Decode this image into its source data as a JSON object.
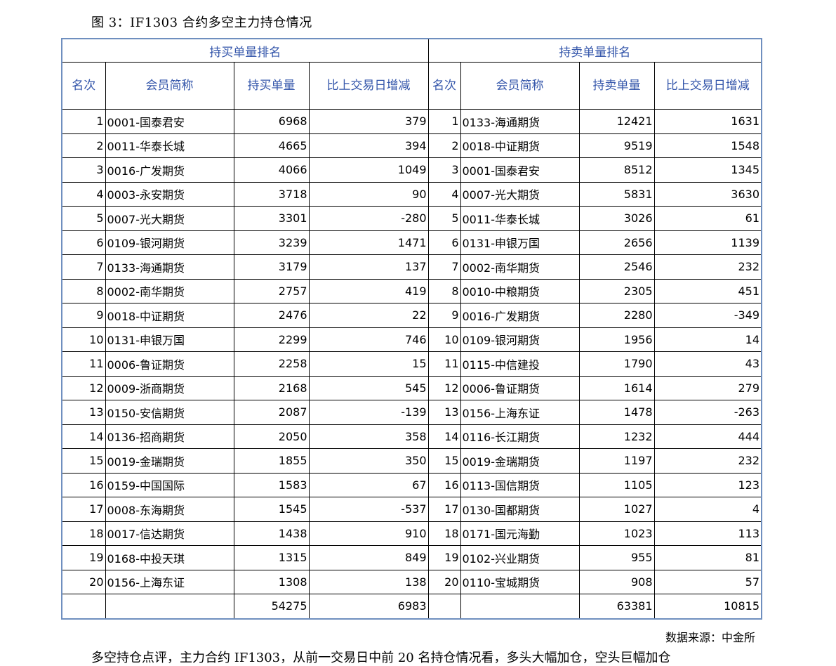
{
  "caption": "图 3：IF1303 合约多空主力持仓情况",
  "table": {
    "long_group": "持买单量排名",
    "short_group": "持卖单量排名",
    "headers": [
      "名次",
      "会员简称",
      "持买单量",
      "比上交易日增减",
      "名次",
      "会员简称",
      "持卖单量",
      "比上交易日增减"
    ],
    "rows": [
      [
        "1",
        "0001-国泰君安",
        "6968",
        "379",
        "1",
        "0133-海通期货",
        "12421",
        "1631"
      ],
      [
        "2",
        "0011-华泰长城",
        "4665",
        "394",
        "2",
        "0018-中证期货",
        "9519",
        "1548"
      ],
      [
        "3",
        "0016-广发期货",
        "4066",
        "1049",
        "3",
        "0001-国泰君安",
        "8512",
        "1345"
      ],
      [
        "4",
        "0003-永安期货",
        "3718",
        "90",
        "4",
        "0007-光大期货",
        "5831",
        "3630"
      ],
      [
        "5",
        "0007-光大期货",
        "3301",
        "-280",
        "5",
        "0011-华泰长城",
        "3026",
        "61"
      ],
      [
        "6",
        "0109-银河期货",
        "3239",
        "1471",
        "6",
        "0131-申银万国",
        "2656",
        "1139"
      ],
      [
        "7",
        "0133-海通期货",
        "3179",
        "137",
        "7",
        "0002-南华期货",
        "2546",
        "232"
      ],
      [
        "8",
        "0002-南华期货",
        "2757",
        "419",
        "8",
        "0010-中粮期货",
        "2305",
        "451"
      ],
      [
        "9",
        "0018-中证期货",
        "2476",
        "22",
        "9",
        "0016-广发期货",
        "2280",
        "-349"
      ],
      [
        "10",
        "0131-申银万国",
        "2299",
        "746",
        "10",
        "0109-银河期货",
        "1956",
        "14"
      ],
      [
        "11",
        "0006-鲁证期货",
        "2258",
        "15",
        "11",
        "0115-中信建投",
        "1790",
        "43"
      ],
      [
        "12",
        "0009-浙商期货",
        "2168",
        "545",
        "12",
        "0006-鲁证期货",
        "1614",
        "279"
      ],
      [
        "13",
        "0150-安信期货",
        "2087",
        "-139",
        "13",
        "0156-上海东证",
        "1478",
        "-263"
      ],
      [
        "14",
        "0136-招商期货",
        "2050",
        "358",
        "14",
        "0116-长江期货",
        "1232",
        "444"
      ],
      [
        "15",
        "0019-金瑞期货",
        "1855",
        "350",
        "15",
        "0019-金瑞期货",
        "1197",
        "232"
      ],
      [
        "16",
        "0159-中国国际",
        "1583",
        "67",
        "16",
        "0113-国信期货",
        "1105",
        "123"
      ],
      [
        "17",
        "0008-东海期货",
        "1545",
        "-537",
        "17",
        "0130-国都期货",
        "1027",
        "4"
      ],
      [
        "18",
        "0017-信达期货",
        "1438",
        "910",
        "18",
        "0171-国元海勤",
        "1023",
        "113"
      ],
      [
        "19",
        "0168-中投天琪",
        "1315",
        "849",
        "19",
        "0102-兴业期货",
        "955",
        "81"
      ],
      [
        "20",
        "0156-上海东证",
        "1308",
        "138",
        "20",
        "0110-宝城期货",
        "908",
        "57"
      ]
    ],
    "totals": [
      "",
      "",
      "54275",
      "6983",
      "",
      "",
      "63381",
      "10815"
    ]
  },
  "source": "数据来源：中金所",
  "comment": "多空持仓点评，主力合约 IF1303，从前一交易日中前 20 名持仓情况看，多头大幅加仓，空头巨幅加仓"
}
